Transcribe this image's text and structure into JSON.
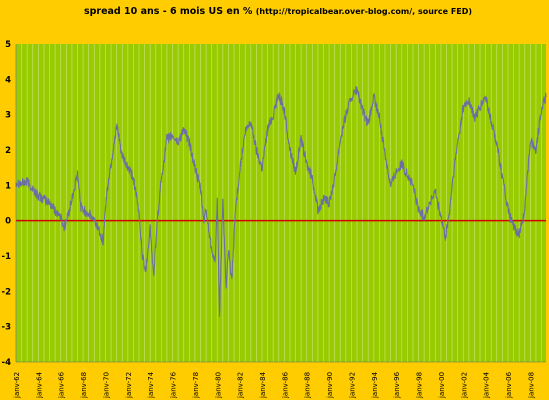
{
  "chart_data": {
    "type": "line",
    "title_main": "spread 10 ans - 6 mois US en %",
    "title_source": "(http://tropicalbear.over-blog.com/, source FED)",
    "xlabel": "",
    "ylabel": "",
    "ylim": [
      -4,
      5
    ],
    "yticks": [
      "5",
      "4",
      "3",
      "2",
      "1",
      "0",
      "-1",
      "-2",
      "-3",
      "-4"
    ],
    "grid": "vertical",
    "legend": "none",
    "x_start_year": 1962,
    "x_end_year": 2009.4,
    "xtick_labels": [
      "janv-62",
      "janv-64",
      "janv-66",
      "janv-68",
      "janv-70",
      "janv-72",
      "janv-74",
      "janv-76",
      "janv-78",
      "janv-80",
      "janv-82",
      "janv-84",
      "janv-86",
      "janv-88",
      "janv-90",
      "janv-92",
      "janv-94",
      "janv-96",
      "janv-98",
      "janv-00",
      "janv-02",
      "janv-04",
      "janv-06",
      "janv-08"
    ],
    "series": [
      {
        "color": "#6b6fa3",
        "points": [
          [
            1962.0,
            1.1
          ],
          [
            1962.5,
            1.05
          ],
          [
            1963.0,
            1.1
          ],
          [
            1963.5,
            0.9
          ],
          [
            1964.0,
            0.7
          ],
          [
            1964.5,
            0.6
          ],
          [
            1965.0,
            0.5
          ],
          [
            1965.5,
            0.3
          ],
          [
            1966.0,
            0.1
          ],
          [
            1966.3,
            -0.2
          ],
          [
            1966.7,
            0.2
          ],
          [
            1967.0,
            0.6
          ],
          [
            1967.5,
            1.3
          ],
          [
            1967.8,
            0.4
          ],
          [
            1968.0,
            0.3
          ],
          [
            1968.5,
            0.2
          ],
          [
            1969.0,
            0.0
          ],
          [
            1969.5,
            -0.3
          ],
          [
            1969.8,
            -0.6
          ],
          [
            1970.0,
            0.4
          ],
          [
            1970.3,
            1.2
          ],
          [
            1970.6,
            1.8
          ],
          [
            1971.0,
            2.7
          ],
          [
            1971.5,
            1.8
          ],
          [
            1972.0,
            1.5
          ],
          [
            1972.5,
            1.2
          ],
          [
            1973.0,
            0.2
          ],
          [
            1973.3,
            -1.0
          ],
          [
            1973.6,
            -1.4
          ],
          [
            1974.0,
            -0.2
          ],
          [
            1974.3,
            -1.6
          ],
          [
            1974.6,
            -0.2
          ],
          [
            1975.0,
            1.2
          ],
          [
            1975.5,
            2.3
          ],
          [
            1976.0,
            2.4
          ],
          [
            1976.5,
            2.2
          ],
          [
            1977.0,
            2.6
          ],
          [
            1977.5,
            2.2
          ],
          [
            1978.0,
            1.5
          ],
          [
            1978.5,
            0.9
          ],
          [
            1978.8,
            0.0
          ],
          [
            1979.0,
            0.3
          ],
          [
            1979.4,
            -0.6
          ],
          [
            1979.8,
            -1.2
          ],
          [
            1980.0,
            0.5
          ],
          [
            1980.2,
            -2.7
          ],
          [
            1980.5,
            0.6
          ],
          [
            1980.8,
            -2.0
          ],
          [
            1981.0,
            -0.8
          ],
          [
            1981.3,
            -1.7
          ],
          [
            1981.6,
            0.2
          ],
          [
            1982.0,
            1.4
          ],
          [
            1982.5,
            2.5
          ],
          [
            1983.0,
            2.8
          ],
          [
            1983.5,
            2.0
          ],
          [
            1984.0,
            1.5
          ],
          [
            1984.5,
            2.6
          ],
          [
            1985.0,
            3.0
          ],
          [
            1985.5,
            3.6
          ],
          [
            1986.0,
            3.1
          ],
          [
            1986.5,
            2.0
          ],
          [
            1987.0,
            1.4
          ],
          [
            1987.5,
            2.3
          ],
          [
            1988.0,
            1.6
          ],
          [
            1988.5,
            1.2
          ],
          [
            1989.0,
            0.3
          ],
          [
            1989.5,
            0.6
          ],
          [
            1990.0,
            0.5
          ],
          [
            1990.5,
            1.2
          ],
          [
            1991.0,
            2.3
          ],
          [
            1991.5,
            3.0
          ],
          [
            1992.0,
            3.5
          ],
          [
            1992.5,
            3.7
          ],
          [
            1993.0,
            3.1
          ],
          [
            1993.5,
            2.7
          ],
          [
            1994.0,
            3.5
          ],
          [
            1994.5,
            2.9
          ],
          [
            1995.0,
            1.9
          ],
          [
            1995.5,
            1.0
          ],
          [
            1996.0,
            1.4
          ],
          [
            1996.5,
            1.6
          ],
          [
            1997.0,
            1.3
          ],
          [
            1997.5,
            1.0
          ],
          [
            1998.0,
            0.3
          ],
          [
            1998.5,
            0.1
          ],
          [
            1999.0,
            0.5
          ],
          [
            1999.5,
            0.8
          ],
          [
            2000.0,
            0.1
          ],
          [
            2000.4,
            -0.5
          ],
          [
            2000.8,
            0.3
          ],
          [
            2001.0,
            1.0
          ],
          [
            2001.5,
            2.2
          ],
          [
            2002.0,
            3.2
          ],
          [
            2002.5,
            3.4
          ],
          [
            2003.0,
            2.9
          ],
          [
            2003.5,
            3.2
          ],
          [
            2004.0,
            3.5
          ],
          [
            2004.5,
            2.8
          ],
          [
            2005.0,
            2.2
          ],
          [
            2005.5,
            1.2
          ],
          [
            2006.0,
            0.3
          ],
          [
            2006.5,
            -0.2
          ],
          [
            2007.0,
            -0.4
          ],
          [
            2007.5,
            0.3
          ],
          [
            2008.0,
            2.3
          ],
          [
            2008.5,
            2.0
          ],
          [
            2009.0,
            3.2
          ],
          [
            2009.4,
            3.5
          ]
        ]
      },
      {
        "name": "0",
        "color": "#d40000",
        "type": "reference-line",
        "value": 0
      }
    ]
  }
}
